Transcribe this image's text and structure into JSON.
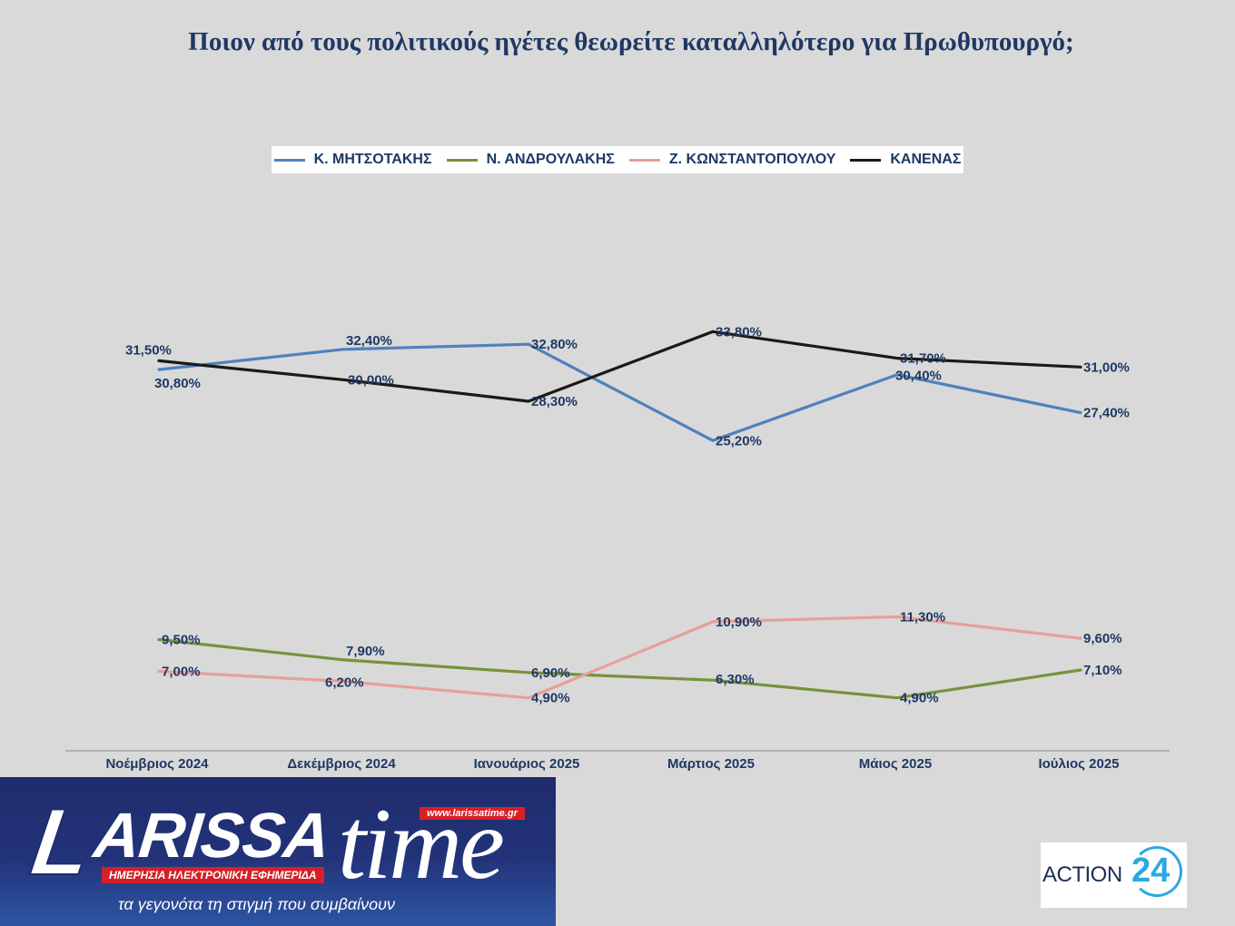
{
  "chart_data": {
    "type": "line",
    "title": "Ποιον από τους πολιτικούς ηγέτες θεωρείτε καταλληλότερο για Πρωθυπουργό;",
    "categories": [
      "Νοέμβριος 2024",
      "Δεκέμβριος  2024",
      "Ιανουάριος 2025",
      "Μάρτιος 2025",
      "Μάιος 2025",
      "Ιούλιος 2025"
    ],
    "legend_position": "top",
    "grid": false,
    "series": [
      {
        "name": "Κ. ΜΗΤΣΟΤΑΚΗΣ",
        "color": "#4f81bd",
        "values": [
          30.8,
          32.4,
          32.8,
          25.2,
          30.4,
          27.4
        ],
        "labels": [
          "30,80%",
          "32,40%",
          "32,80%",
          "25,20%",
          "30,40%",
          "27,40%"
        ]
      },
      {
        "name": "Ν. ΑΝΔΡΟΥΛΑΚΗΣ",
        "color": "#76923c",
        "values": [
          9.5,
          7.9,
          6.9,
          6.3,
          4.9,
          7.1
        ],
        "labels": [
          "9,50%",
          "7,90%",
          "6,90%",
          "6,30%",
          "4,90%",
          "7,10%"
        ]
      },
      {
        "name": "Ζ. ΚΩΝΣΤΑΝΤΟΠΟΥΛΟΥ",
        "color": "#e6a09a",
        "values": [
          7.0,
          6.2,
          4.9,
          10.9,
          11.3,
          9.6
        ],
        "labels": [
          "7,00%",
          "6,20%",
          "4,90%",
          "10,90%",
          "11,30%",
          "9,60%"
        ]
      },
      {
        "name": "ΚΑΝΕΝΑΣ",
        "color": "#1a1a14",
        "values": [
          31.5,
          30.0,
          28.3,
          33.8,
          31.7,
          31.0
        ],
        "labels": [
          "31,50%",
          "30,00%",
          "28,30%",
          "33,80%",
          "31,70%",
          "31,00%"
        ]
      }
    ]
  },
  "logos": {
    "larissa_time": {
      "name_part1": "L",
      "name_part2": "ARISSA",
      "name_part3": "time",
      "url": "www.larissatime.gr",
      "subtitle": "ΗΜΕΡΗΣΙΑ ΗΛΕΚΤΡΟΝΙΚΗ ΕΦΗΜΕΡΙΔΑ",
      "tagline": "τα γεγονότα τη στιγμή που συμβαίνουν"
    },
    "action24": {
      "text": "ACTION",
      "number": "24"
    }
  }
}
